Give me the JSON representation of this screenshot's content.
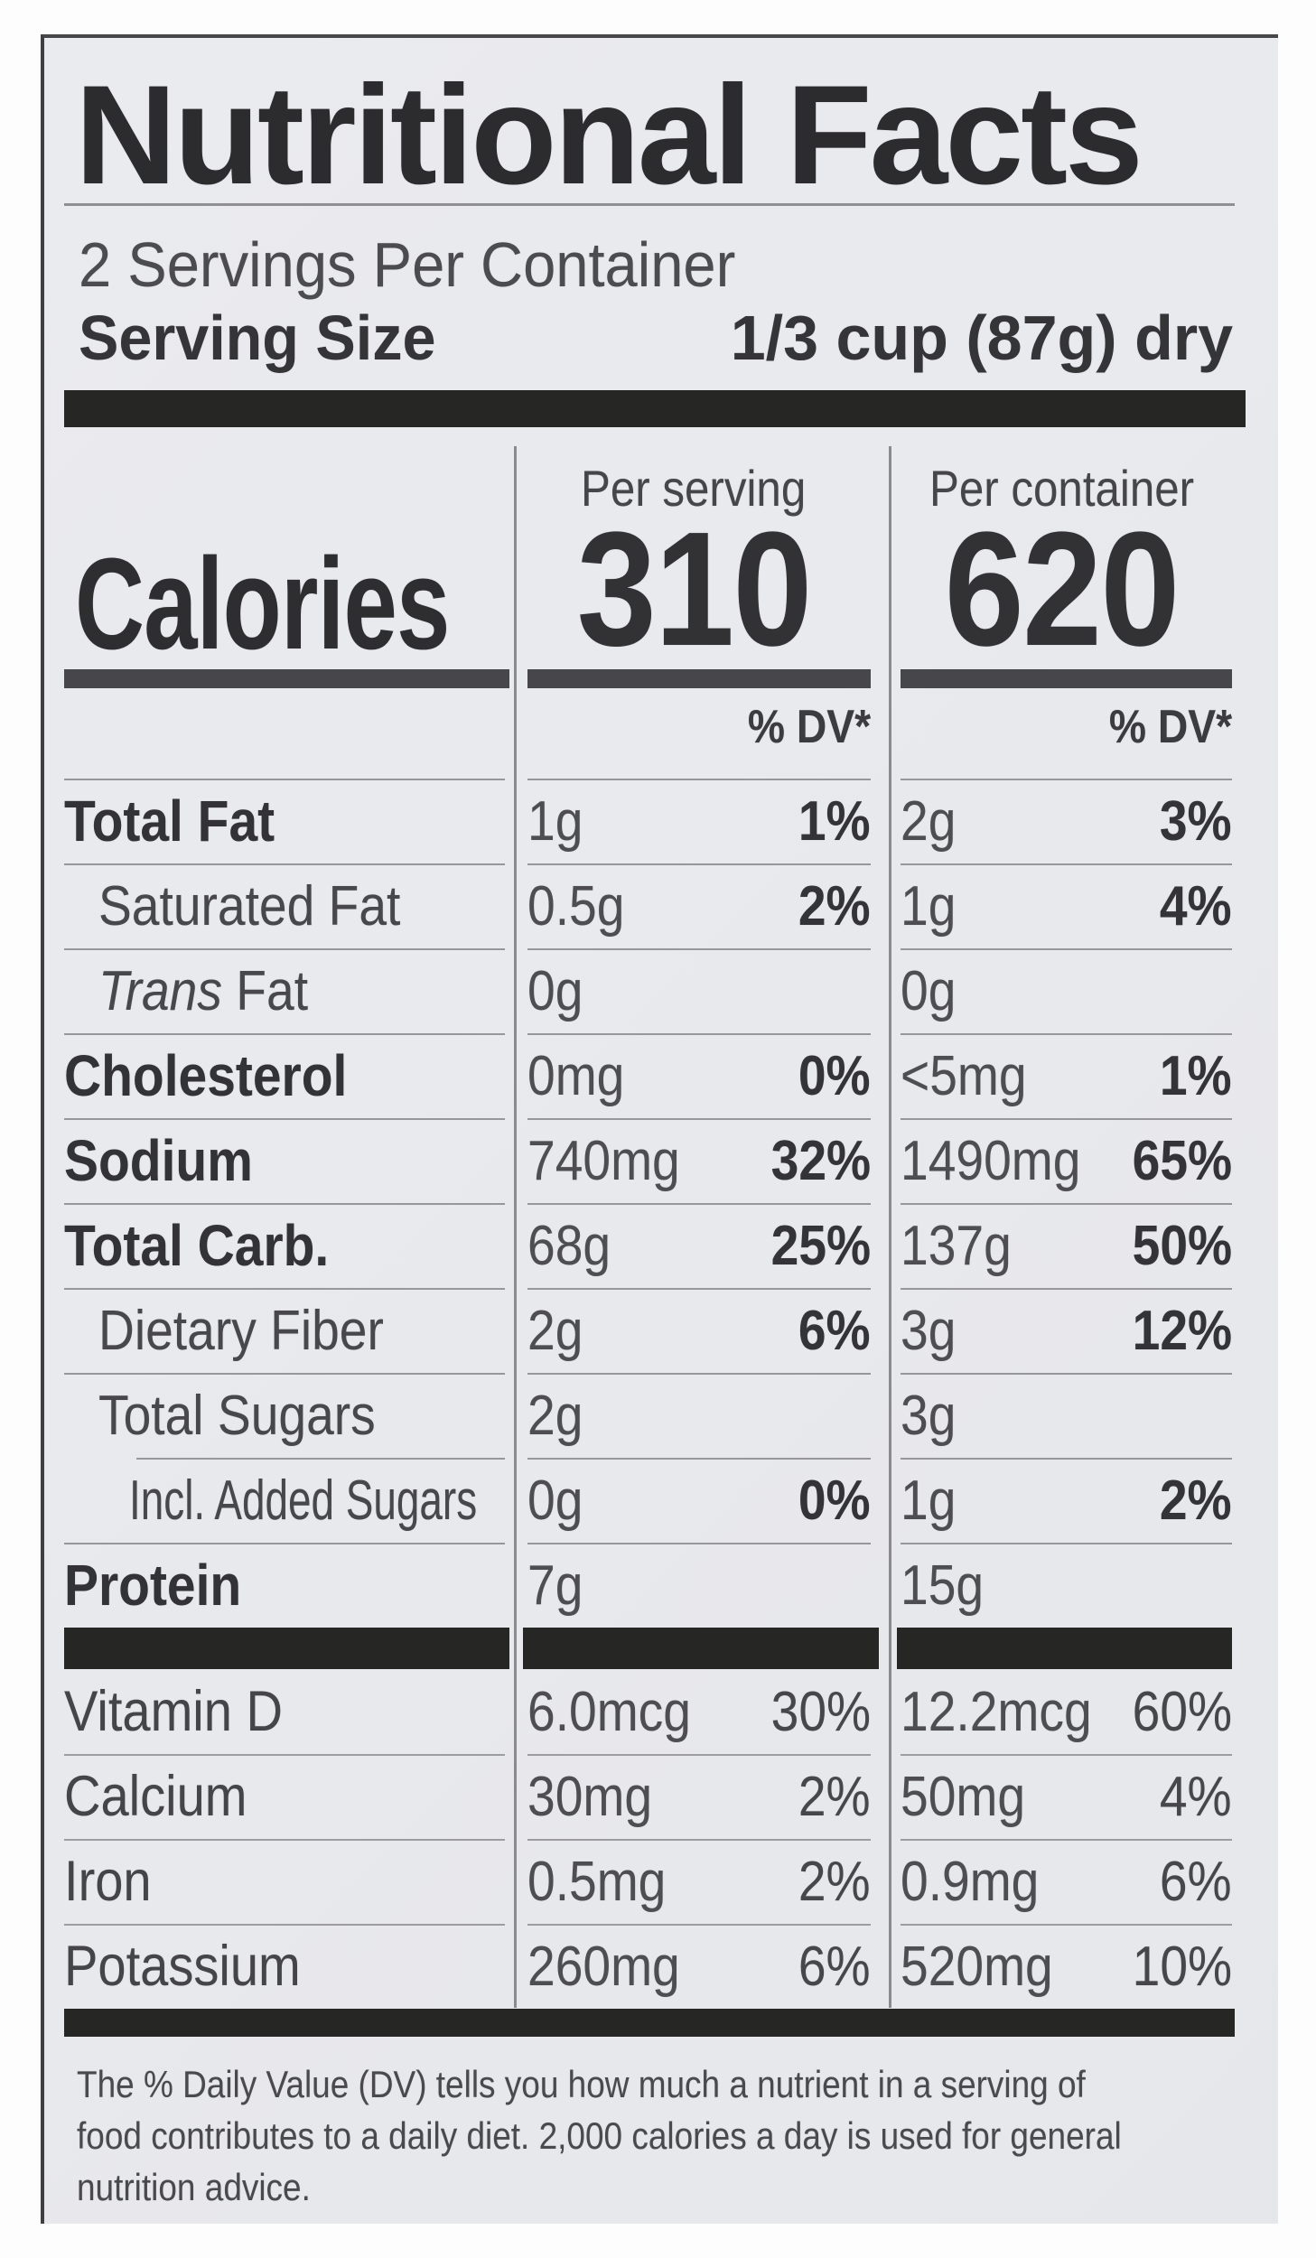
{
  "label": {
    "title": "Nutritional Facts",
    "servings_per_container": "2 Servings Per Container",
    "serving_size": {
      "label": "Serving Size",
      "value": "1/3 cup (87g) dry"
    },
    "column_headers": {
      "per_serving": "Per serving",
      "per_container": "Per container"
    },
    "calories": {
      "label": "Calories",
      "per_serving": "310",
      "per_container": "620"
    },
    "dv_header": "% DV*",
    "nutrients": [
      {
        "label": "Total Fat",
        "style": "bold",
        "indent": 0,
        "per_serving": {
          "amount": "1g",
          "dv": "1%"
        },
        "per_container": {
          "amount": "2g",
          "dv": "3%"
        }
      },
      {
        "label": "Saturated Fat",
        "style": "regular",
        "indent": 1,
        "per_serving": {
          "amount": "0.5g",
          "dv": "2%"
        },
        "per_container": {
          "amount": "1g",
          "dv": "4%"
        }
      },
      {
        "label_italic": "Trans",
        "label": " Fat",
        "style": "regular",
        "indent": 1,
        "per_serving": {
          "amount": "0g",
          "dv": ""
        },
        "per_container": {
          "amount": "0g",
          "dv": ""
        }
      },
      {
        "label": "Cholesterol",
        "style": "bold",
        "indent": 0,
        "per_serving": {
          "amount": "0mg",
          "dv": "0%"
        },
        "per_container": {
          "amount": "<5mg",
          "dv": "1%"
        }
      },
      {
        "label": "Sodium",
        "style": "bold",
        "indent": 0,
        "per_serving": {
          "amount": "740mg",
          "dv": "32%"
        },
        "per_container": {
          "amount": "1490mg",
          "dv": "65%"
        }
      },
      {
        "label": "Total Carb.",
        "style": "bold",
        "indent": 0,
        "per_serving": {
          "amount": "68g",
          "dv": "25%"
        },
        "per_container": {
          "amount": "137g",
          "dv": "50%"
        }
      },
      {
        "label": "Dietary Fiber",
        "style": "regular",
        "indent": 1,
        "per_serving": {
          "amount": "2g",
          "dv": "6%"
        },
        "per_container": {
          "amount": "3g",
          "dv": "12%"
        }
      },
      {
        "label": "Total Sugars",
        "style": "regular",
        "indent": 1,
        "per_serving": {
          "amount": "2g",
          "dv": ""
        },
        "per_container": {
          "amount": "3g",
          "dv": ""
        }
      },
      {
        "label": "Incl. Added Sugars",
        "style": "regular",
        "indent": 2,
        "rule_indent": true,
        "per_serving": {
          "amount": "0g",
          "dv": "0%"
        },
        "per_container": {
          "amount": "1g",
          "dv": "2%"
        }
      },
      {
        "label": "Protein",
        "style": "bold",
        "indent": 0,
        "per_serving": {
          "amount": "7g",
          "dv": ""
        },
        "per_container": {
          "amount": "15g",
          "dv": ""
        }
      }
    ],
    "vitamins": [
      {
        "label": "Vitamin D",
        "per_serving": {
          "amount": "6.0mcg",
          "dv": "30%"
        },
        "per_container": {
          "amount": "12.2mcg",
          "dv": "60%"
        }
      },
      {
        "label": "Calcium",
        "per_serving": {
          "amount": "30mg",
          "dv": "2%"
        },
        "per_container": {
          "amount": "50mg",
          "dv": "4%"
        }
      },
      {
        "label": "Iron",
        "per_serving": {
          "amount": "0.5mg",
          "dv": "2%"
        },
        "per_container": {
          "amount": "0.9mg",
          "dv": "6%"
        }
      },
      {
        "label": "Potassium",
        "per_serving": {
          "amount": "260mg",
          "dv": "6%"
        },
        "per_container": {
          "amount": "520mg",
          "dv": "10%"
        }
      }
    ],
    "footnote_lines": [
      "The % Daily Value (DV) tells you how much a nutrient in a serving of",
      "food contributes to a daily diet. 2,000 calories a day is used for general",
      "nutrition advice."
    ],
    "colors": {
      "label_background": "#e9eaed",
      "ink_dark": "#2c2c2f",
      "ink_regular": "#4c4c50",
      "bar": "#262625",
      "hairline": "#97979b"
    }
  }
}
